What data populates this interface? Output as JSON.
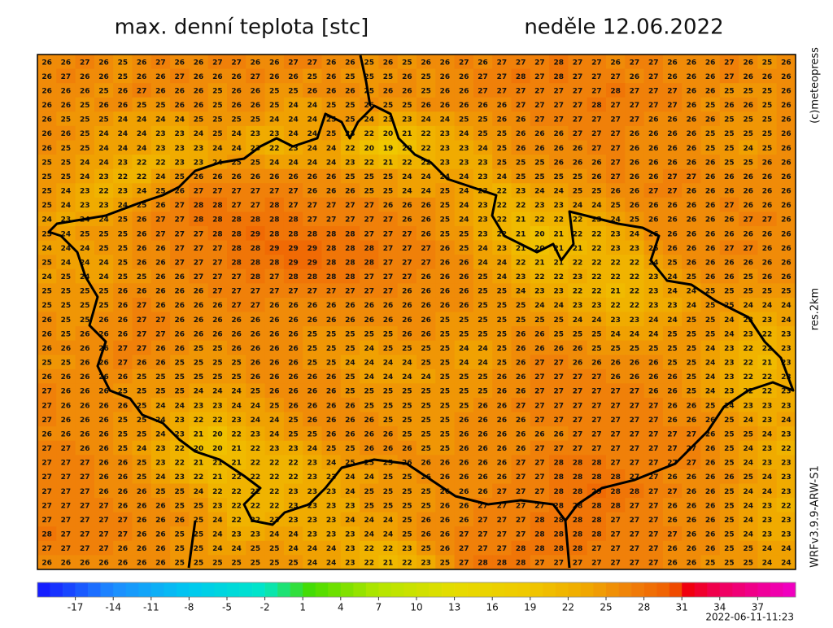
{
  "title": "max. denní teplota [stc]",
  "date": "neděle 12.06.2022",
  "credit": "(c)meteopress",
  "resolution": "res.2km",
  "model": "WRFv3.9.9-ARW-S1",
  "timestamp": "2022-06-11-11:23",
  "grid": {
    "rows": [
      [
        26,
        26,
        27,
        26,
        25,
        26,
        27,
        26,
        26,
        27,
        27,
        26,
        26,
        27,
        27,
        26,
        26,
        25,
        26,
        25,
        26,
        26,
        27,
        26,
        27,
        27,
        27,
        28,
        27,
        27,
        26,
        27,
        27,
        26,
        26,
        26,
        27,
        26,
        25,
        26
      ],
      [
        26,
        27,
        26,
        26,
        25,
        26,
        26,
        27,
        26,
        26,
        26,
        27,
        26,
        26,
        25,
        26,
        25,
        25,
        25,
        26,
        25,
        26,
        26,
        27,
        27,
        28,
        27,
        28,
        27,
        27,
        27,
        26,
        27,
        26,
        26,
        26,
        27,
        26,
        26,
        26
      ],
      [
        26,
        26,
        26,
        25,
        26,
        27,
        26,
        26,
        26,
        25,
        26,
        26,
        25,
        25,
        26,
        26,
        26,
        25,
        26,
        26,
        25,
        26,
        26,
        27,
        27,
        27,
        27,
        27,
        27,
        27,
        28,
        27,
        27,
        27,
        26,
        26,
        25,
        25,
        25,
        26
      ],
      [
        26,
        26,
        25,
        26,
        26,
        25,
        25,
        26,
        26,
        25,
        26,
        26,
        25,
        24,
        24,
        25,
        25,
        26,
        25,
        25,
        26,
        26,
        26,
        26,
        26,
        27,
        27,
        27,
        27,
        28,
        27,
        27,
        27,
        27,
        26,
        25,
        26,
        26,
        25,
        26
      ],
      [
        26,
        25,
        25,
        25,
        24,
        24,
        24,
        24,
        25,
        25,
        25,
        25,
        24,
        24,
        24,
        25,
        25,
        24,
        23,
        23,
        24,
        24,
        25,
        25,
        26,
        26,
        27,
        27,
        27,
        27,
        27,
        27,
        26,
        26,
        26,
        26,
        25,
        25,
        25,
        26
      ],
      [
        26,
        26,
        25,
        24,
        24,
        24,
        23,
        23,
        24,
        25,
        24,
        23,
        23,
        24,
        24,
        25,
        23,
        22,
        20,
        21,
        22,
        23,
        24,
        25,
        25,
        26,
        26,
        26,
        27,
        27,
        27,
        26,
        26,
        26,
        26,
        25,
        25,
        25,
        25,
        26
      ],
      [
        26,
        25,
        25,
        24,
        24,
        24,
        23,
        23,
        23,
        24,
        24,
        23,
        22,
        23,
        24,
        24,
        22,
        20,
        19,
        20,
        22,
        23,
        23,
        24,
        25,
        26,
        26,
        26,
        26,
        27,
        27,
        26,
        26,
        26,
        26,
        25,
        25,
        24,
        25,
        26
      ],
      [
        25,
        25,
        24,
        24,
        23,
        22,
        22,
        23,
        23,
        24,
        25,
        25,
        24,
        24,
        24,
        24,
        23,
        22,
        21,
        22,
        22,
        23,
        23,
        23,
        25,
        25,
        25,
        26,
        26,
        26,
        27,
        26,
        26,
        26,
        26,
        26,
        25,
        25,
        26,
        26
      ],
      [
        25,
        25,
        24,
        23,
        22,
        22,
        24,
        25,
        26,
        26,
        26,
        26,
        26,
        26,
        26,
        26,
        25,
        25,
        25,
        24,
        24,
        24,
        24,
        23,
        24,
        25,
        25,
        25,
        25,
        26,
        27,
        26,
        26,
        27,
        27,
        26,
        26,
        26,
        26,
        26
      ],
      [
        25,
        24,
        23,
        22,
        23,
        24,
        25,
        26,
        27,
        27,
        27,
        27,
        27,
        27,
        26,
        26,
        26,
        25,
        25,
        24,
        24,
        25,
        24,
        23,
        22,
        23,
        24,
        24,
        25,
        25,
        26,
        26,
        27,
        27,
        26,
        26,
        26,
        26,
        26,
        26
      ],
      [
        25,
        24,
        23,
        23,
        24,
        25,
        26,
        27,
        28,
        28,
        27,
        27,
        28,
        27,
        27,
        27,
        27,
        27,
        26,
        26,
        26,
        25,
        24,
        23,
        22,
        22,
        23,
        23,
        24,
        24,
        25,
        26,
        26,
        26,
        26,
        26,
        27,
        26,
        26,
        26
      ],
      [
        24,
        23,
        24,
        24,
        25,
        26,
        27,
        27,
        28,
        28,
        28,
        28,
        28,
        28,
        27,
        27,
        27,
        27,
        27,
        26,
        26,
        25,
        24,
        23,
        22,
        21,
        22,
        22,
        22,
        23,
        24,
        25,
        26,
        26,
        26,
        26,
        26,
        27,
        27,
        26
      ],
      [
        25,
        24,
        25,
        25,
        25,
        26,
        27,
        27,
        27,
        28,
        28,
        29,
        28,
        28,
        28,
        28,
        28,
        27,
        27,
        27,
        26,
        25,
        25,
        23,
        22,
        21,
        20,
        21,
        22,
        22,
        23,
        24,
        26,
        26,
        26,
        26,
        26,
        26,
        26,
        26
      ],
      [
        24,
        24,
        24,
        25,
        25,
        26,
        26,
        27,
        27,
        27,
        28,
        28,
        29,
        29,
        29,
        28,
        28,
        28,
        27,
        27,
        27,
        26,
        25,
        24,
        23,
        21,
        20,
        21,
        21,
        22,
        23,
        23,
        25,
        26,
        26,
        26,
        27,
        27,
        26,
        26
      ],
      [
        25,
        24,
        24,
        24,
        25,
        26,
        26,
        27,
        27,
        27,
        28,
        28,
        28,
        29,
        29,
        28,
        28,
        28,
        27,
        27,
        27,
        26,
        26,
        24,
        24,
        22,
        21,
        21,
        22,
        22,
        22,
        22,
        24,
        25,
        26,
        26,
        26,
        26,
        26,
        26
      ],
      [
        24,
        25,
        24,
        24,
        25,
        25,
        26,
        26,
        27,
        27,
        27,
        28,
        27,
        28,
        28,
        28,
        28,
        27,
        27,
        27,
        26,
        26,
        26,
        25,
        24,
        23,
        22,
        22,
        23,
        22,
        22,
        22,
        23,
        24,
        25,
        26,
        26,
        25,
        26,
        26
      ],
      [
        25,
        25,
        25,
        25,
        26,
        26,
        26,
        26,
        26,
        27,
        27,
        27,
        27,
        27,
        27,
        27,
        27,
        27,
        27,
        26,
        26,
        26,
        26,
        25,
        25,
        24,
        23,
        23,
        22,
        22,
        21,
        22,
        23,
        24,
        24,
        25,
        25,
        25,
        25,
        25
      ],
      [
        25,
        25,
        25,
        25,
        26,
        27,
        26,
        26,
        26,
        26,
        27,
        27,
        26,
        26,
        26,
        26,
        26,
        26,
        26,
        26,
        26,
        26,
        26,
        25,
        25,
        25,
        24,
        24,
        23,
        23,
        22,
        22,
        23,
        23,
        24,
        25,
        25,
        24,
        24,
        24
      ],
      [
        26,
        25,
        25,
        26,
        26,
        27,
        27,
        26,
        26,
        26,
        26,
        26,
        26,
        26,
        26,
        26,
        26,
        26,
        26,
        26,
        26,
        25,
        25,
        25,
        25,
        25,
        25,
        25,
        24,
        24,
        23,
        23,
        24,
        24,
        25,
        25,
        24,
        23,
        23,
        24
      ],
      [
        26,
        25,
        26,
        26,
        26,
        27,
        27,
        26,
        26,
        26,
        26,
        26,
        26,
        26,
        25,
        25,
        25,
        25,
        25,
        26,
        26,
        25,
        25,
        25,
        25,
        26,
        26,
        25,
        25,
        25,
        24,
        24,
        24,
        25,
        25,
        25,
        24,
        23,
        22,
        23
      ],
      [
        26,
        26,
        26,
        26,
        27,
        27,
        26,
        26,
        25,
        25,
        26,
        26,
        26,
        26,
        25,
        25,
        25,
        24,
        25,
        25,
        25,
        25,
        24,
        24,
        25,
        26,
        26,
        26,
        26,
        25,
        25,
        25,
        25,
        25,
        25,
        24,
        23,
        22,
        22,
        23
      ],
      [
        25,
        25,
        26,
        26,
        27,
        26,
        26,
        25,
        25,
        25,
        25,
        26,
        26,
        26,
        25,
        25,
        24,
        24,
        24,
        24,
        25,
        25,
        24,
        24,
        25,
        26,
        27,
        27,
        26,
        26,
        26,
        26,
        26,
        25,
        25,
        24,
        23,
        22,
        21,
        23
      ],
      [
        26,
        26,
        26,
        26,
        26,
        25,
        25,
        25,
        25,
        25,
        25,
        26,
        26,
        26,
        26,
        26,
        25,
        24,
        24,
        24,
        24,
        25,
        25,
        25,
        26,
        26,
        27,
        27,
        27,
        27,
        26,
        26,
        26,
        26,
        25,
        24,
        23,
        22,
        22,
        23
      ],
      [
        27,
        26,
        26,
        26,
        25,
        25,
        25,
        25,
        24,
        24,
        24,
        25,
        26,
        26,
        26,
        26,
        25,
        25,
        25,
        25,
        25,
        25,
        25,
        25,
        26,
        26,
        27,
        27,
        27,
        27,
        27,
        27,
        26,
        26,
        25,
        24,
        23,
        22,
        22,
        23
      ],
      [
        27,
        26,
        26,
        26,
        26,
        25,
        24,
        24,
        23,
        23,
        24,
        24,
        25,
        26,
        26,
        26,
        26,
        25,
        25,
        25,
        25,
        25,
        25,
        26,
        26,
        27,
        27,
        27,
        27,
        27,
        27,
        27,
        27,
        26,
        26,
        25,
        24,
        23,
        23,
        23
      ],
      [
        27,
        26,
        26,
        26,
        25,
        25,
        24,
        23,
        22,
        22,
        23,
        24,
        24,
        25,
        26,
        26,
        26,
        26,
        25,
        25,
        25,
        25,
        26,
        26,
        26,
        26,
        27,
        27,
        27,
        27,
        27,
        27,
        27,
        26,
        26,
        26,
        25,
        24,
        23,
        24
      ],
      [
        26,
        26,
        26,
        26,
        25,
        25,
        24,
        23,
        21,
        20,
        22,
        23,
        24,
        25,
        25,
        26,
        26,
        26,
        26,
        25,
        25,
        25,
        26,
        26,
        26,
        26,
        26,
        26,
        27,
        27,
        27,
        27,
        27,
        27,
        27,
        26,
        25,
        25,
        24,
        23
      ],
      [
        27,
        27,
        26,
        26,
        25,
        24,
        23,
        22,
        20,
        20,
        21,
        22,
        23,
        23,
        24,
        25,
        25,
        26,
        26,
        26,
        25,
        25,
        26,
        26,
        26,
        26,
        27,
        27,
        27,
        27,
        27,
        27,
        27,
        27,
        27,
        26,
        25,
        24,
        23,
        22
      ],
      [
        27,
        27,
        27,
        26,
        26,
        25,
        23,
        22,
        21,
        21,
        21,
        22,
        22,
        22,
        23,
        24,
        25,
        25,
        25,
        26,
        26,
        26,
        26,
        26,
        26,
        27,
        27,
        28,
        28,
        28,
        27,
        27,
        27,
        27,
        27,
        26,
        25,
        24,
        23,
        23
      ],
      [
        27,
        27,
        27,
        26,
        26,
        25,
        24,
        23,
        22,
        21,
        22,
        22,
        22,
        22,
        23,
        23,
        24,
        24,
        25,
        25,
        26,
        26,
        26,
        26,
        26,
        27,
        27,
        28,
        28,
        28,
        28,
        27,
        27,
        26,
        26,
        26,
        26,
        25,
        24,
        23
      ],
      [
        27,
        27,
        27,
        26,
        26,
        26,
        25,
        25,
        24,
        22,
        22,
        22,
        22,
        23,
        23,
        23,
        24,
        25,
        25,
        25,
        25,
        26,
        26,
        26,
        27,
        27,
        27,
        28,
        28,
        29,
        28,
        28,
        27,
        27,
        26,
        26,
        25,
        24,
        24,
        23
      ],
      [
        27,
        27,
        27,
        27,
        26,
        26,
        26,
        25,
        25,
        23,
        22,
        22,
        22,
        23,
        23,
        23,
        23,
        25,
        25,
        25,
        25,
        26,
        26,
        27,
        27,
        27,
        27,
        28,
        28,
        28,
        28,
        27,
        27,
        26,
        26,
        26,
        25,
        24,
        23,
        22
      ],
      [
        27,
        27,
        27,
        27,
        27,
        26,
        26,
        26,
        25,
        24,
        22,
        22,
        23,
        23,
        23,
        23,
        24,
        24,
        24,
        25,
        26,
        26,
        26,
        27,
        27,
        27,
        28,
        28,
        28,
        28,
        27,
        27,
        27,
        26,
        26,
        26,
        25,
        24,
        23,
        23
      ],
      [
        28,
        27,
        27,
        27,
        27,
        26,
        26,
        25,
        25,
        24,
        23,
        23,
        24,
        24,
        23,
        23,
        23,
        24,
        24,
        25,
        26,
        26,
        27,
        27,
        27,
        27,
        28,
        28,
        28,
        28,
        27,
        27,
        27,
        27,
        26,
        26,
        25,
        24,
        23,
        23
      ],
      [
        27,
        27,
        27,
        27,
        26,
        26,
        26,
        25,
        25,
        24,
        24,
        25,
        25,
        24,
        24,
        24,
        23,
        22,
        22,
        23,
        25,
        26,
        27,
        27,
        27,
        28,
        28,
        28,
        28,
        27,
        27,
        27,
        27,
        26,
        26,
        26,
        25,
        25,
        24,
        24
      ],
      [
        26,
        26,
        26,
        26,
        26,
        26,
        26,
        25,
        25,
        25,
        25,
        25,
        25,
        25,
        24,
        24,
        23,
        22,
        21,
        22,
        23,
        25,
        27,
        28,
        28,
        28,
        27,
        27,
        27,
        27,
        27,
        27,
        27,
        26,
        26,
        25,
        25,
        25,
        24,
        24
      ]
    ]
  },
  "colorbar": {
    "min": -20,
    "max": 40,
    "ticks": [
      -17,
      -14,
      -11,
      -8,
      -5,
      -2,
      1,
      4,
      7,
      10,
      13,
      16,
      19,
      22,
      25,
      28,
      31,
      34,
      37
    ]
  }
}
